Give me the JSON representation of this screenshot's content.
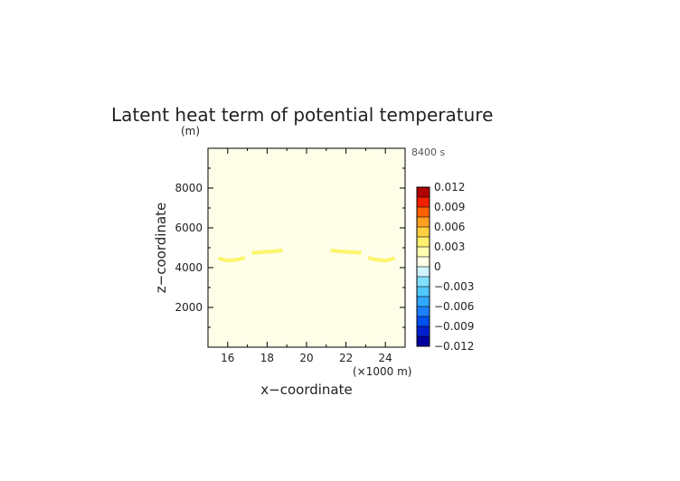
{
  "chart_data": {
    "type": "heatmap",
    "title": "Latent heat term of potential temperature",
    "xlabel": "x−coordinate",
    "ylabel": "z−coordinate",
    "xunit": "(×1000 m)",
    "yunit": "(m)",
    "time_label": "8400 s",
    "xlim": [
      15,
      25
    ],
    "ylim": [
      0,
      10000
    ],
    "xticks": [
      "16",
      "18",
      "20",
      "22",
      "24"
    ],
    "xtick_values": [
      16,
      18,
      20,
      22,
      24
    ],
    "yticks": [
      "2000",
      "4000",
      "6000",
      "8000"
    ],
    "ytick_values": [
      2000,
      4000,
      6000,
      8000
    ],
    "background_level": "0 to 0.0015",
    "features": [
      {
        "name": "band-left-outer",
        "points": [
          [
            15.6,
            4450
          ],
          [
            16.0,
            4350
          ],
          [
            16.5,
            4400
          ],
          [
            16.8,
            4480
          ]
        ]
      },
      {
        "name": "band-left-inner",
        "points": [
          [
            17.3,
            4750
          ],
          [
            17.8,
            4780
          ],
          [
            18.3,
            4820
          ],
          [
            18.7,
            4860
          ]
        ]
      },
      {
        "name": "band-right-inner",
        "points": [
          [
            21.3,
            4860
          ],
          [
            21.7,
            4820
          ],
          [
            22.2,
            4780
          ],
          [
            22.7,
            4750
          ]
        ]
      },
      {
        "name": "band-right-outer",
        "points": [
          [
            23.2,
            4480
          ],
          [
            23.5,
            4400
          ],
          [
            24.0,
            4350
          ],
          [
            24.4,
            4450
          ]
        ]
      }
    ],
    "colorbar": {
      "labels": [
        "0.012",
        "0.009",
        "0.006",
        "0.003",
        "0",
        "−0.003",
        "−0.006",
        "−0.009",
        "−0.012"
      ],
      "label_values": [
        0.012,
        0.009,
        0.006,
        0.003,
        0,
        -0.003,
        -0.006,
        -0.009,
        -0.012
      ],
      "min": -0.012,
      "max": 0.012,
      "step": 0.0015,
      "colors": [
        "#0000a0",
        "#0020d0",
        "#0050f0",
        "#1a80ff",
        "#30a8ff",
        "#50c8ff",
        "#80e0ff",
        "#d0f4ff",
        "#ffffe8",
        "#ffffb0",
        "#fff070",
        "#ffd040",
        "#ffa020",
        "#ff6000",
        "#f02000",
        "#b00000"
      ]
    },
    "colors": {
      "background_fill": "#fefde8",
      "band_fill": "#fbf56a"
    }
  }
}
